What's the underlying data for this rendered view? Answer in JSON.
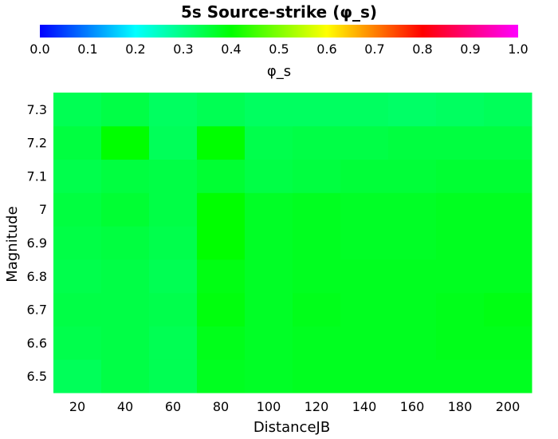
{
  "chart_data": {
    "type": "heatmap",
    "title": "5s Source-strike (φ_s)",
    "xlabel": "DistanceJB",
    "ylabel": "Magnitude",
    "x": [
      20,
      40,
      60,
      80,
      100,
      120,
      140,
      160,
      180,
      200
    ],
    "y": [
      6.5,
      6.6,
      6.7,
      6.8,
      6.9,
      7.0,
      7.1,
      7.2,
      7.3
    ],
    "y_tick_labels": [
      "6.5",
      "6.6",
      "6.7",
      "6.8",
      "6.9",
      "7",
      "7.1",
      "7.2",
      "7.3"
    ],
    "xlim": [
      10,
      210
    ],
    "ylim": [
      6.45,
      7.35
    ],
    "values": [
      [
        0.33,
        0.345,
        0.335,
        0.375,
        0.37,
        0.375,
        0.375,
        0.375,
        0.375,
        0.375
      ],
      [
        0.34,
        0.345,
        0.335,
        0.38,
        0.37,
        0.375,
        0.375,
        0.375,
        0.38,
        0.38
      ],
      [
        0.345,
        0.345,
        0.34,
        0.39,
        0.37,
        0.38,
        0.375,
        0.375,
        0.38,
        0.385
      ],
      [
        0.34,
        0.345,
        0.335,
        0.385,
        0.37,
        0.375,
        0.375,
        0.375,
        0.375,
        0.375
      ],
      [
        0.345,
        0.35,
        0.34,
        0.4,
        0.37,
        0.375,
        0.37,
        0.37,
        0.375,
        0.375
      ],
      [
        0.35,
        0.36,
        0.345,
        0.4,
        0.37,
        0.375,
        0.37,
        0.37,
        0.375,
        0.375
      ],
      [
        0.34,
        0.35,
        0.345,
        0.36,
        0.345,
        0.35,
        0.355,
        0.355,
        0.36,
        0.36
      ],
      [
        0.35,
        0.4,
        0.33,
        0.4,
        0.34,
        0.345,
        0.345,
        0.35,
        0.35,
        0.35
      ],
      [
        0.335,
        0.345,
        0.325,
        0.335,
        0.325,
        0.325,
        0.325,
        0.32,
        0.325,
        0.33
      ]
    ],
    "colorbar": {
      "label": "φ_s",
      "min": 0.0,
      "max": 1.0,
      "ticks": [
        "0.0",
        "0.1",
        "0.2",
        "0.3",
        "0.4",
        "0.5",
        "0.6",
        "0.7",
        "0.8",
        "0.9",
        "1.0"
      ],
      "colors": [
        "#0000ff",
        "#00ffff",
        "#00ff00",
        "#ffff00",
        "#ff0000",
        "#ff00ff"
      ]
    },
    "grid": false,
    "legend": "colorbar-top"
  }
}
